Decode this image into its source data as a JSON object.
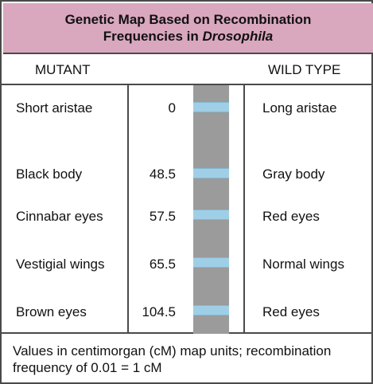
{
  "title": {
    "line1": "Genetic Map Based on Recombination",
    "line2_prefix": "Frequencies in ",
    "line2_italic": "Drosophila"
  },
  "headers": {
    "mutant": "MUTANT",
    "wild_type": "WILD TYPE"
  },
  "rows": [
    {
      "mutant": "Short aristae",
      "position_cm": "0",
      "wild_type": "Long aristae"
    },
    {
      "mutant": "Black body",
      "position_cm": "48.5",
      "wild_type": "Gray body"
    },
    {
      "mutant": "Cinnabar eyes",
      "position_cm": "57.5",
      "wild_type": "Red eyes"
    },
    {
      "mutant": "Vestigial wings",
      "position_cm": "65.5",
      "wild_type": "Normal wings"
    },
    {
      "mutant": "Brown eyes",
      "position_cm": "104.5",
      "wild_type": "Red eyes"
    }
  ],
  "footer": {
    "line1": "Values in centimorgan (cM) map units; recombination",
    "line2": "frequency of 0.01 = 1 cM"
  },
  "colors": {
    "title_background": "#d9a7be",
    "chromosome": "#9b9b9b",
    "gene_band": "#9fcfe6",
    "border": "#4a4a4a"
  }
}
